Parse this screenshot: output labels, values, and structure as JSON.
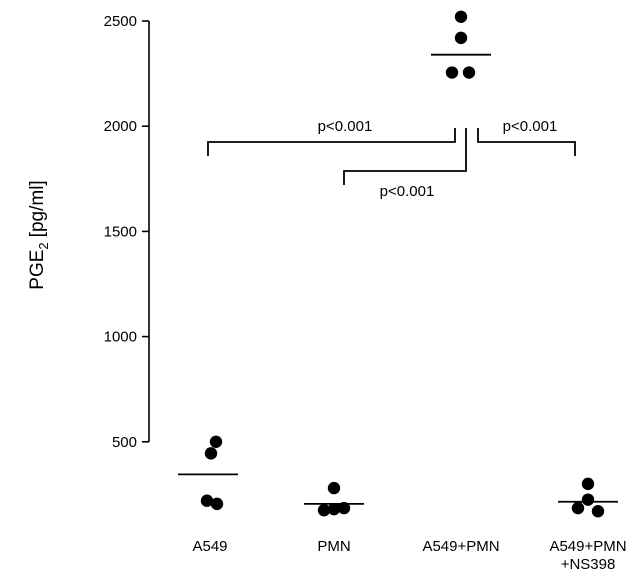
{
  "chart_data": {
    "type": "scatter",
    "ylabel_main": "PGE",
    "ylabel_sub": "2",
    "ylabel_unit": "pg/ml",
    "ylim": [
      0,
      2600
    ],
    "yticks": [
      500,
      1000,
      1500,
      2000,
      2500
    ],
    "categories": [
      {
        "lines": [
          "A549"
        ]
      },
      {
        "lines": [
          "PMN"
        ]
      },
      {
        "lines": [
          "A549+PMN"
        ]
      },
      {
        "lines": [
          "A549+PMN",
          "+NS398"
        ]
      }
    ],
    "groups": [
      {
        "category_index": 0,
        "mean": 345,
        "points": [
          500,
          445,
          220,
          205
        ]
      },
      {
        "category_index": 1,
        "mean": 205,
        "points": [
          280,
          175,
          180,
          185
        ]
      },
      {
        "category_index": 2,
        "mean": 2340,
        "points": [
          2520,
          2420,
          2255,
          2255
        ]
      },
      {
        "category_index": 3,
        "mean": 215,
        "points": [
          300,
          185,
          225,
          170
        ]
      }
    ],
    "comparisons": [
      {
        "from": 0,
        "to": 2,
        "label": "p<0.001"
      },
      {
        "from": 1,
        "to": 2,
        "label": "p<0.001"
      },
      {
        "from": 2,
        "to": 3,
        "label": "p<0.001"
      }
    ],
    "grid": false,
    "legend": "none"
  }
}
